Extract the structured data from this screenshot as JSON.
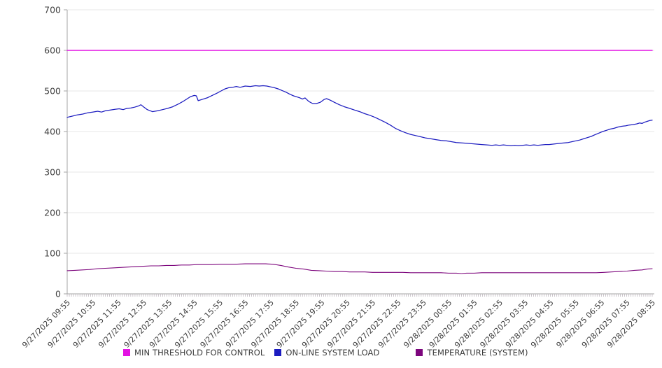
{
  "chart_data": {
    "type": "line",
    "title": "",
    "xlabel": "",
    "ylabel": "",
    "x_unit": "hours_since_first_label",
    "x_axis": {
      "labels": [
        "9/27/2025 09:55",
        "9/27/2025 10:55",
        "9/27/2025 11:55",
        "9/27/2025 12:55",
        "9/27/2025 13:55",
        "9/27/2025 14:55",
        "9/27/2025 15:55",
        "9/27/2025 16:55",
        "9/27/2025 17:55",
        "9/27/2025 18:55",
        "9/27/2025 19:55",
        "9/27/2025 20:55",
        "9/27/2025 21:55",
        "9/27/2025 22:55",
        "9/27/2025 23:55",
        "9/28/2025 00:55",
        "9/28/2025 01:55",
        "9/28/2025 02:55",
        "9/28/2025 03:55",
        "9/28/2025 04:55",
        "9/28/2025 05:55",
        "9/28/2025 06:55",
        "9/28/2025 07:55",
        "9/28/2025 08:55"
      ],
      "label_rotation_deg": -45,
      "minor_ticks_per_hour": 12
    },
    "y_axis": {
      "min": 0,
      "max": 700,
      "tick_step": 100,
      "ticks": [
        0,
        100,
        200,
        300,
        400,
        500,
        600,
        700
      ]
    },
    "grid": "horizontal",
    "legend_position": "bottom",
    "colors": {
      "grid": "#e7e7e7",
      "axis": "#a6a6a6",
      "minor_tick": "#b6aeb6",
      "tick_text": "#404040"
    },
    "series": [
      {
        "name": "MIN THRESHOLD FOR CONTROL",
        "color": "#e313e3",
        "stroke_width": 1.6,
        "points": [
          [
            0,
            600
          ],
          [
            23,
            600
          ]
        ]
      },
      {
        "name": "ON-LINE SYSTEM LOAD",
        "color": "#1c1cc0",
        "stroke_width": 1.25,
        "points": [
          [
            0,
            435
          ],
          [
            0.2,
            438
          ],
          [
            0.4,
            441
          ],
          [
            0.6,
            443
          ],
          [
            0.8,
            446
          ],
          [
            1,
            448
          ],
          [
            1.2,
            450
          ],
          [
            1.35,
            448
          ],
          [
            1.5,
            451
          ],
          [
            1.7,
            453
          ],
          [
            1.9,
            455
          ],
          [
            2.05,
            456
          ],
          [
            2.2,
            454
          ],
          [
            2.35,
            457
          ],
          [
            2.5,
            458
          ],
          [
            2.65,
            460
          ],
          [
            2.8,
            463
          ],
          [
            2.9,
            466
          ],
          [
            3,
            461
          ],
          [
            3.15,
            454
          ],
          [
            3.35,
            449
          ],
          [
            3.55,
            451
          ],
          [
            3.75,
            454
          ],
          [
            3.95,
            457
          ],
          [
            4.15,
            461
          ],
          [
            4.35,
            467
          ],
          [
            4.55,
            474
          ],
          [
            4.7,
            480
          ],
          [
            4.85,
            486
          ],
          [
            5,
            489
          ],
          [
            5.08,
            488
          ],
          [
            5.15,
            476
          ],
          [
            5.3,
            479
          ],
          [
            5.5,
            483
          ],
          [
            5.7,
            489
          ],
          [
            5.9,
            495
          ],
          [
            6.05,
            500
          ],
          [
            6.2,
            505
          ],
          [
            6.35,
            508
          ],
          [
            6.5,
            509
          ],
          [
            6.65,
            511
          ],
          [
            6.8,
            509
          ],
          [
            7,
            512
          ],
          [
            7.2,
            511
          ],
          [
            7.4,
            513
          ],
          [
            7.55,
            512
          ],
          [
            7.7,
            513
          ],
          [
            7.85,
            512
          ],
          [
            8,
            510
          ],
          [
            8.15,
            508
          ],
          [
            8.3,
            505
          ],
          [
            8.45,
            501
          ],
          [
            8.6,
            497
          ],
          [
            8.75,
            492
          ],
          [
            8.9,
            488
          ],
          [
            9.05,
            485
          ],
          [
            9.15,
            483
          ],
          [
            9.25,
            480
          ],
          [
            9.35,
            483
          ],
          [
            9.5,
            474
          ],
          [
            9.65,
            469
          ],
          [
            9.8,
            469
          ],
          [
            9.95,
            472
          ],
          [
            10.1,
            479
          ],
          [
            10.2,
            481
          ],
          [
            10.35,
            477
          ],
          [
            10.5,
            472
          ],
          [
            10.7,
            466
          ],
          [
            10.9,
            461
          ],
          [
            11.1,
            457
          ],
          [
            11.3,
            453
          ],
          [
            11.5,
            449
          ],
          [
            11.7,
            444
          ],
          [
            11.9,
            440
          ],
          [
            12.1,
            435
          ],
          [
            12.3,
            429
          ],
          [
            12.5,
            423
          ],
          [
            12.7,
            416
          ],
          [
            12.9,
            408
          ],
          [
            13.1,
            402
          ],
          [
            13.3,
            397
          ],
          [
            13.5,
            393
          ],
          [
            13.7,
            390
          ],
          [
            13.9,
            387
          ],
          [
            14.1,
            384
          ],
          [
            14.3,
            382
          ],
          [
            14.5,
            380
          ],
          [
            14.7,
            378
          ],
          [
            14.9,
            377
          ],
          [
            15.1,
            375
          ],
          [
            15.3,
            373
          ],
          [
            15.5,
            372
          ],
          [
            15.7,
            371
          ],
          [
            15.9,
            370
          ],
          [
            16.1,
            369
          ],
          [
            16.3,
            368
          ],
          [
            16.5,
            367
          ],
          [
            16.7,
            366
          ],
          [
            16.85,
            367
          ],
          [
            17,
            366
          ],
          [
            17.15,
            367
          ],
          [
            17.3,
            366
          ],
          [
            17.45,
            365
          ],
          [
            17.6,
            366
          ],
          [
            17.75,
            365
          ],
          [
            17.9,
            366
          ],
          [
            18.05,
            367
          ],
          [
            18.2,
            366
          ],
          [
            18.35,
            367
          ],
          [
            18.5,
            366
          ],
          [
            18.65,
            367
          ],
          [
            18.8,
            368
          ],
          [
            18.95,
            368
          ],
          [
            19.1,
            369
          ],
          [
            19.25,
            370
          ],
          [
            19.4,
            371
          ],
          [
            19.55,
            372
          ],
          [
            19.7,
            373
          ],
          [
            19.85,
            375
          ],
          [
            20,
            377
          ],
          [
            20.15,
            379
          ],
          [
            20.3,
            382
          ],
          [
            20.45,
            385
          ],
          [
            20.6,
            388
          ],
          [
            20.75,
            392
          ],
          [
            20.9,
            396
          ],
          [
            21.05,
            400
          ],
          [
            21.2,
            403
          ],
          [
            21.35,
            406
          ],
          [
            21.5,
            408
          ],
          [
            21.65,
            411
          ],
          [
            21.8,
            413
          ],
          [
            21.95,
            414
          ],
          [
            22.1,
            416
          ],
          [
            22.25,
            417
          ],
          [
            22.4,
            419
          ],
          [
            22.5,
            421
          ],
          [
            22.6,
            420
          ],
          [
            22.7,
            423
          ],
          [
            22.8,
            425
          ],
          [
            22.9,
            427
          ],
          [
            23,
            428
          ]
        ]
      },
      {
        "name": "TEMPERATURE (SYSTEM)",
        "color": "#7d067d",
        "stroke_width": 1.1,
        "points": [
          [
            0,
            57
          ],
          [
            0.3,
            58
          ],
          [
            0.6,
            59
          ],
          [
            0.9,
            60
          ],
          [
            1.2,
            62
          ],
          [
            1.5,
            63
          ],
          [
            1.8,
            64
          ],
          [
            2.1,
            65
          ],
          [
            2.4,
            66
          ],
          [
            2.7,
            67
          ],
          [
            3,
            68
          ],
          [
            3.3,
            69
          ],
          [
            3.6,
            69
          ],
          [
            3.9,
            70
          ],
          [
            4.2,
            70
          ],
          [
            4.5,
            71
          ],
          [
            4.8,
            71
          ],
          [
            5.1,
            72
          ],
          [
            5.4,
            72
          ],
          [
            5.7,
            72
          ],
          [
            6,
            73
          ],
          [
            6.3,
            73
          ],
          [
            6.6,
            73
          ],
          [
            7,
            74
          ],
          [
            7.4,
            74
          ],
          [
            7.8,
            74
          ],
          [
            8.1,
            73
          ],
          [
            8.4,
            70
          ],
          [
            8.7,
            66
          ],
          [
            9,
            63
          ],
          [
            9.3,
            61
          ],
          [
            9.6,
            58
          ],
          [
            9.9,
            57
          ],
          [
            10.2,
            56
          ],
          [
            10.5,
            55
          ],
          [
            10.8,
            55
          ],
          [
            11.1,
            54
          ],
          [
            11.4,
            54
          ],
          [
            11.7,
            54
          ],
          [
            12,
            53
          ],
          [
            12.3,
            53
          ],
          [
            12.6,
            53
          ],
          [
            12.9,
            53
          ],
          [
            13.2,
            53
          ],
          [
            13.5,
            52
          ],
          [
            13.8,
            52
          ],
          [
            14.1,
            52
          ],
          [
            14.4,
            52
          ],
          [
            14.7,
            52
          ],
          [
            15,
            51
          ],
          [
            15.3,
            51
          ],
          [
            15.5,
            50
          ],
          [
            15.7,
            51
          ],
          [
            16,
            51
          ],
          [
            16.3,
            52
          ],
          [
            16.6,
            52
          ],
          [
            16.9,
            52
          ],
          [
            17.2,
            52
          ],
          [
            17.5,
            52
          ],
          [
            17.8,
            52
          ],
          [
            18.1,
            52
          ],
          [
            18.4,
            52
          ],
          [
            18.7,
            52
          ],
          [
            19,
            52
          ],
          [
            19.3,
            52
          ],
          [
            19.6,
            52
          ],
          [
            19.9,
            52
          ],
          [
            20.2,
            52
          ],
          [
            20.5,
            52
          ],
          [
            20.8,
            52
          ],
          [
            21.1,
            53
          ],
          [
            21.4,
            54
          ],
          [
            21.7,
            55
          ],
          [
            22,
            56
          ],
          [
            22.3,
            58
          ],
          [
            22.6,
            59
          ],
          [
            22.8,
            61
          ],
          [
            23,
            62
          ]
        ]
      }
    ]
  }
}
